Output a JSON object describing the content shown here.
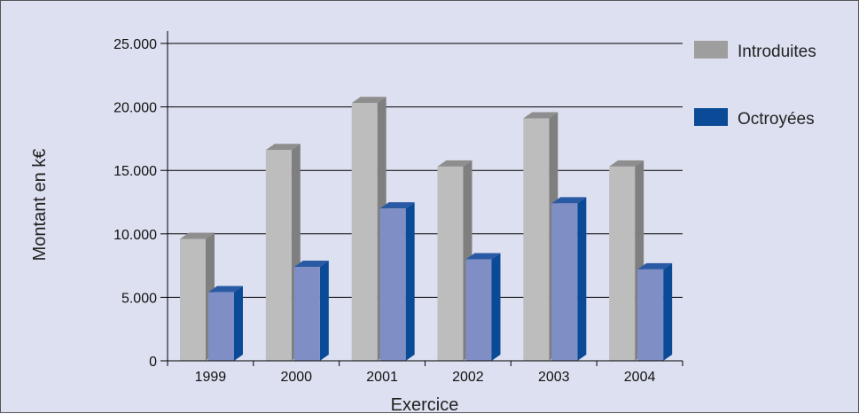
{
  "chart_data": {
    "type": "bar",
    "title": "",
    "xlabel": "Exercice",
    "ylabel": "Montant en k€",
    "categories": [
      "1999",
      "2000",
      "2001",
      "2002",
      "2003",
      "2004"
    ],
    "ylim": [
      0,
      25000
    ],
    "yticks": [
      0,
      5000,
      10000,
      15000,
      20000,
      25000
    ],
    "ytick_labels": [
      "0",
      "5.000",
      "10.000",
      "15.000",
      "20.000",
      "25.000"
    ],
    "grid": true,
    "legend_position": "right",
    "series": [
      {
        "name": "Introduites",
        "values": [
          9600,
          16600,
          20300,
          15300,
          19100,
          15300
        ]
      },
      {
        "name": "Octroyées",
        "values": [
          5400,
          7400,
          12000,
          8000,
          12400,
          7200
        ]
      }
    ]
  },
  "colors": {
    "background": "#dde0f0",
    "grid": "#000000",
    "introduites_front": "#bdbdbd",
    "introduites_side": "#7f7f7f",
    "introduites_top": "#8e8e8e",
    "octroyees_front": "#7f8fc6",
    "octroyees_side": "#0b4a96",
    "octroyees_top": "#2a5aa4",
    "legend_introduites": "#9e9e9e",
    "legend_octroyees": "#0b4a96"
  }
}
